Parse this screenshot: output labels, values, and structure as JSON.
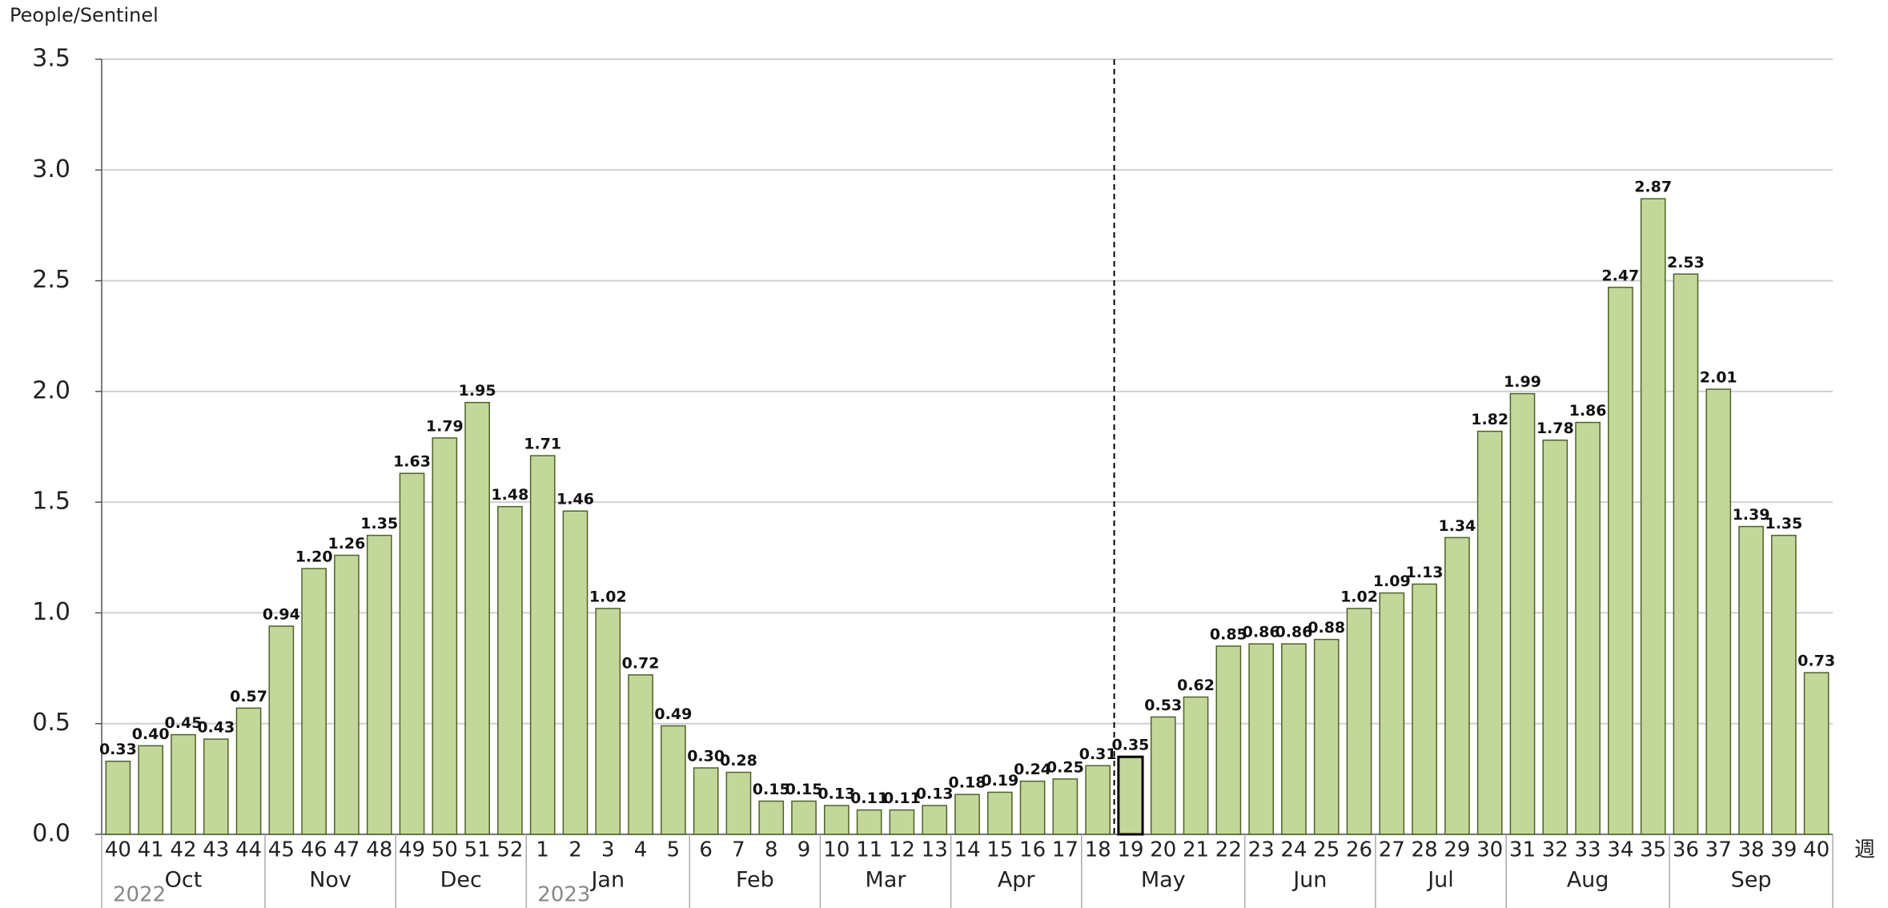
{
  "chart_data": {
    "type": "bar",
    "y_axis_label": "People/Sentinel",
    "x_axis_label": "週",
    "categories": [
      "40",
      "41",
      "42",
      "43",
      "44",
      "45",
      "46",
      "47",
      "48",
      "49",
      "50",
      "51",
      "52",
      "1",
      "2",
      "3",
      "4",
      "5",
      "6",
      "7",
      "8",
      "9",
      "10",
      "11",
      "12",
      "13",
      "14",
      "15",
      "16",
      "17",
      "18",
      "19",
      "20",
      "21",
      "22",
      "23",
      "24",
      "25",
      "26",
      "27",
      "28",
      "29",
      "30",
      "31",
      "32",
      "33",
      "34",
      "35",
      "36",
      "37",
      "38",
      "39",
      "40"
    ],
    "values": [
      0.33,
      0.4,
      0.45,
      0.43,
      0.57,
      0.94,
      1.2,
      1.26,
      1.35,
      1.63,
      1.79,
      1.95,
      1.48,
      1.71,
      1.46,
      1.02,
      0.72,
      0.49,
      0.3,
      0.28,
      0.15,
      0.15,
      0.13,
      0.11,
      0.11,
      0.13,
      0.18,
      0.19,
      0.24,
      0.25,
      0.31,
      0.35,
      0.53,
      0.62,
      0.85,
      0.86,
      0.86,
      0.88,
      1.02,
      1.09,
      1.13,
      1.34,
      1.82,
      1.99,
      1.78,
      1.86,
      2.47,
      2.87,
      2.53,
      2.01,
      1.39,
      1.35,
      0.73
    ],
    "value_labels": [
      "0.33",
      "0.40",
      "0.45",
      "0.43",
      "0.57",
      "0.94",
      "1.20",
      "1.26",
      "1.35",
      "1.63",
      "1.79",
      "1.95",
      "1.48",
      "1.71",
      "1.46",
      "1.02",
      "0.72",
      "0.49",
      "0.30",
      "0.28",
      "0.15",
      "0.15",
      "0.13",
      "0.11",
      "0.11",
      "0.13",
      "0.18",
      "0.19",
      "0.24",
      "0.25",
      "0.31",
      "0.35",
      "0.53",
      "0.62",
      "0.85",
      "0.86",
      "0.86",
      "0.88",
      "1.02",
      "1.09",
      "1.13",
      "1.34",
      "1.82",
      "1.99",
      "1.78",
      "1.86",
      "2.47",
      "2.87",
      "2.53",
      "2.01",
      "1.39",
      "1.35",
      "0.73"
    ],
    "months": [
      {
        "label": "Oct",
        "span": 5,
        "year": "2022"
      },
      {
        "label": "Nov",
        "span": 4
      },
      {
        "label": "Dec",
        "span": 4
      },
      {
        "label": "Jan",
        "span": 5,
        "year": "2023"
      },
      {
        "label": "Feb",
        "span": 4
      },
      {
        "label": "Mar",
        "span": 4
      },
      {
        "label": "Apr",
        "span": 4
      },
      {
        "label": "May",
        "span": 5
      },
      {
        "label": "Jun",
        "span": 4
      },
      {
        "label": "Jul",
        "span": 4
      },
      {
        "label": "Aug",
        "span": 5
      },
      {
        "label": "Sep",
        "span": 5
      }
    ],
    "color": "#c4d79b",
    "ylim": [
      0,
      3.5
    ],
    "yticks": [
      {
        "value": 0,
        "label": "0.0"
      },
      0.5,
      {
        "value": 1,
        "label": "1.0"
      },
      1.5,
      {
        "value": 2,
        "label": "2.0"
      },
      2.5,
      {
        "value": 3,
        "label": "3.0"
      },
      3.5
    ],
    "grid": true
  }
}
